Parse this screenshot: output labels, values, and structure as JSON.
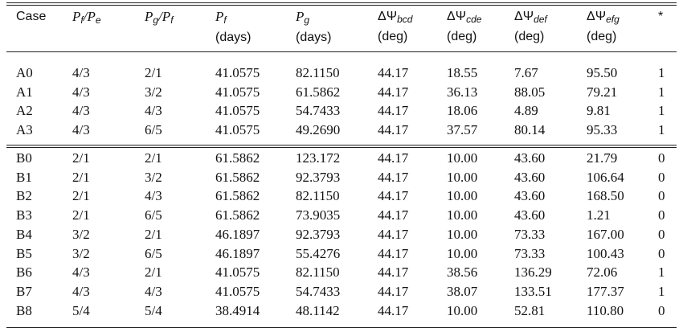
{
  "header": [
    [
      {
        "t": "Case"
      }
    ],
    [
      {
        "i": "P"
      },
      {
        "sub": "f"
      },
      {
        "i": "/P"
      },
      {
        "sub": "e"
      }
    ],
    [
      {
        "i": "P"
      },
      {
        "sub": "g"
      },
      {
        "i": "/P"
      },
      {
        "sub": "f"
      }
    ],
    [
      {
        "i": "P"
      },
      {
        "sub": "f"
      },
      {
        "br": "(days)"
      }
    ],
    [
      {
        "i": "P"
      },
      {
        "sub": "g"
      },
      {
        "br": "(days)"
      }
    ],
    [
      {
        "t": "ΔΨ"
      },
      {
        "sub": "bcd"
      },
      {
        "br": "(deg)"
      }
    ],
    [
      {
        "t": "ΔΨ"
      },
      {
        "sub": "cde"
      },
      {
        "br": "(deg)"
      }
    ],
    [
      {
        "t": "ΔΨ"
      },
      {
        "sub": "def"
      },
      {
        "br": "(deg)"
      }
    ],
    [
      {
        "t": "ΔΨ"
      },
      {
        "sub": "efg"
      },
      {
        "br": "(deg)"
      }
    ],
    [
      {
        "t": "*"
      }
    ]
  ],
  "groups": [
    {
      "rows": [
        [
          "A0",
          "4/3",
          "2/1",
          "41.0575",
          "82.1150",
          "44.17",
          "18.55",
          "7.67",
          "95.50",
          "1"
        ],
        [
          "A1",
          "4/3",
          "3/2",
          "41.0575",
          "61.5862",
          "44.17",
          "36.13",
          "88.05",
          "79.21",
          "1"
        ],
        [
          "A2",
          "4/3",
          "4/3",
          "41.0575",
          "54.7433",
          "44.17",
          "18.06",
          "4.89",
          "9.81",
          "1"
        ],
        [
          "A3",
          "4/3",
          "6/5",
          "41.0575",
          "49.2690",
          "44.17",
          "37.57",
          "80.14",
          "95.33",
          "1"
        ]
      ]
    },
    {
      "rows": [
        [
          "B0",
          "2/1",
          "2/1",
          "61.5862",
          "123.172",
          "44.17",
          "10.00",
          "43.60",
          "21.79",
          "0"
        ],
        [
          "B1",
          "2/1",
          "3/2",
          "61.5862",
          "92.3793",
          "44.17",
          "10.00",
          "43.60",
          "106.64",
          "0"
        ],
        [
          "B2",
          "2/1",
          "4/3",
          "61.5862",
          "82.1150",
          "44.17",
          "10.00",
          "43.60",
          "168.50",
          "0"
        ],
        [
          "B3",
          "2/1",
          "6/5",
          "61.5862",
          "73.9035",
          "44.17",
          "10.00",
          "43.60",
          "1.21",
          "0"
        ],
        [
          "B4",
          "3/2",
          "2/1",
          "46.1897",
          "92.3793",
          "44.17",
          "10.00",
          "73.33",
          "167.00",
          "0"
        ],
        [
          "B5",
          "3/2",
          "6/5",
          "46.1897",
          "55.4276",
          "44.17",
          "10.00",
          "73.33",
          "100.43",
          "0"
        ],
        [
          "B6",
          "4/3",
          "2/1",
          "41.0575",
          "82.1150",
          "44.17",
          "38.56",
          "136.29",
          "72.06",
          "1"
        ],
        [
          "B7",
          "4/3",
          "4/3",
          "41.0575",
          "54.7433",
          "44.17",
          "38.07",
          "133.51",
          "177.37",
          "1"
        ],
        [
          "B8",
          "5/4",
          "5/4",
          "38.4914",
          "48.1142",
          "44.17",
          "10.00",
          "52.81",
          "110.80",
          "0"
        ]
      ]
    }
  ]
}
